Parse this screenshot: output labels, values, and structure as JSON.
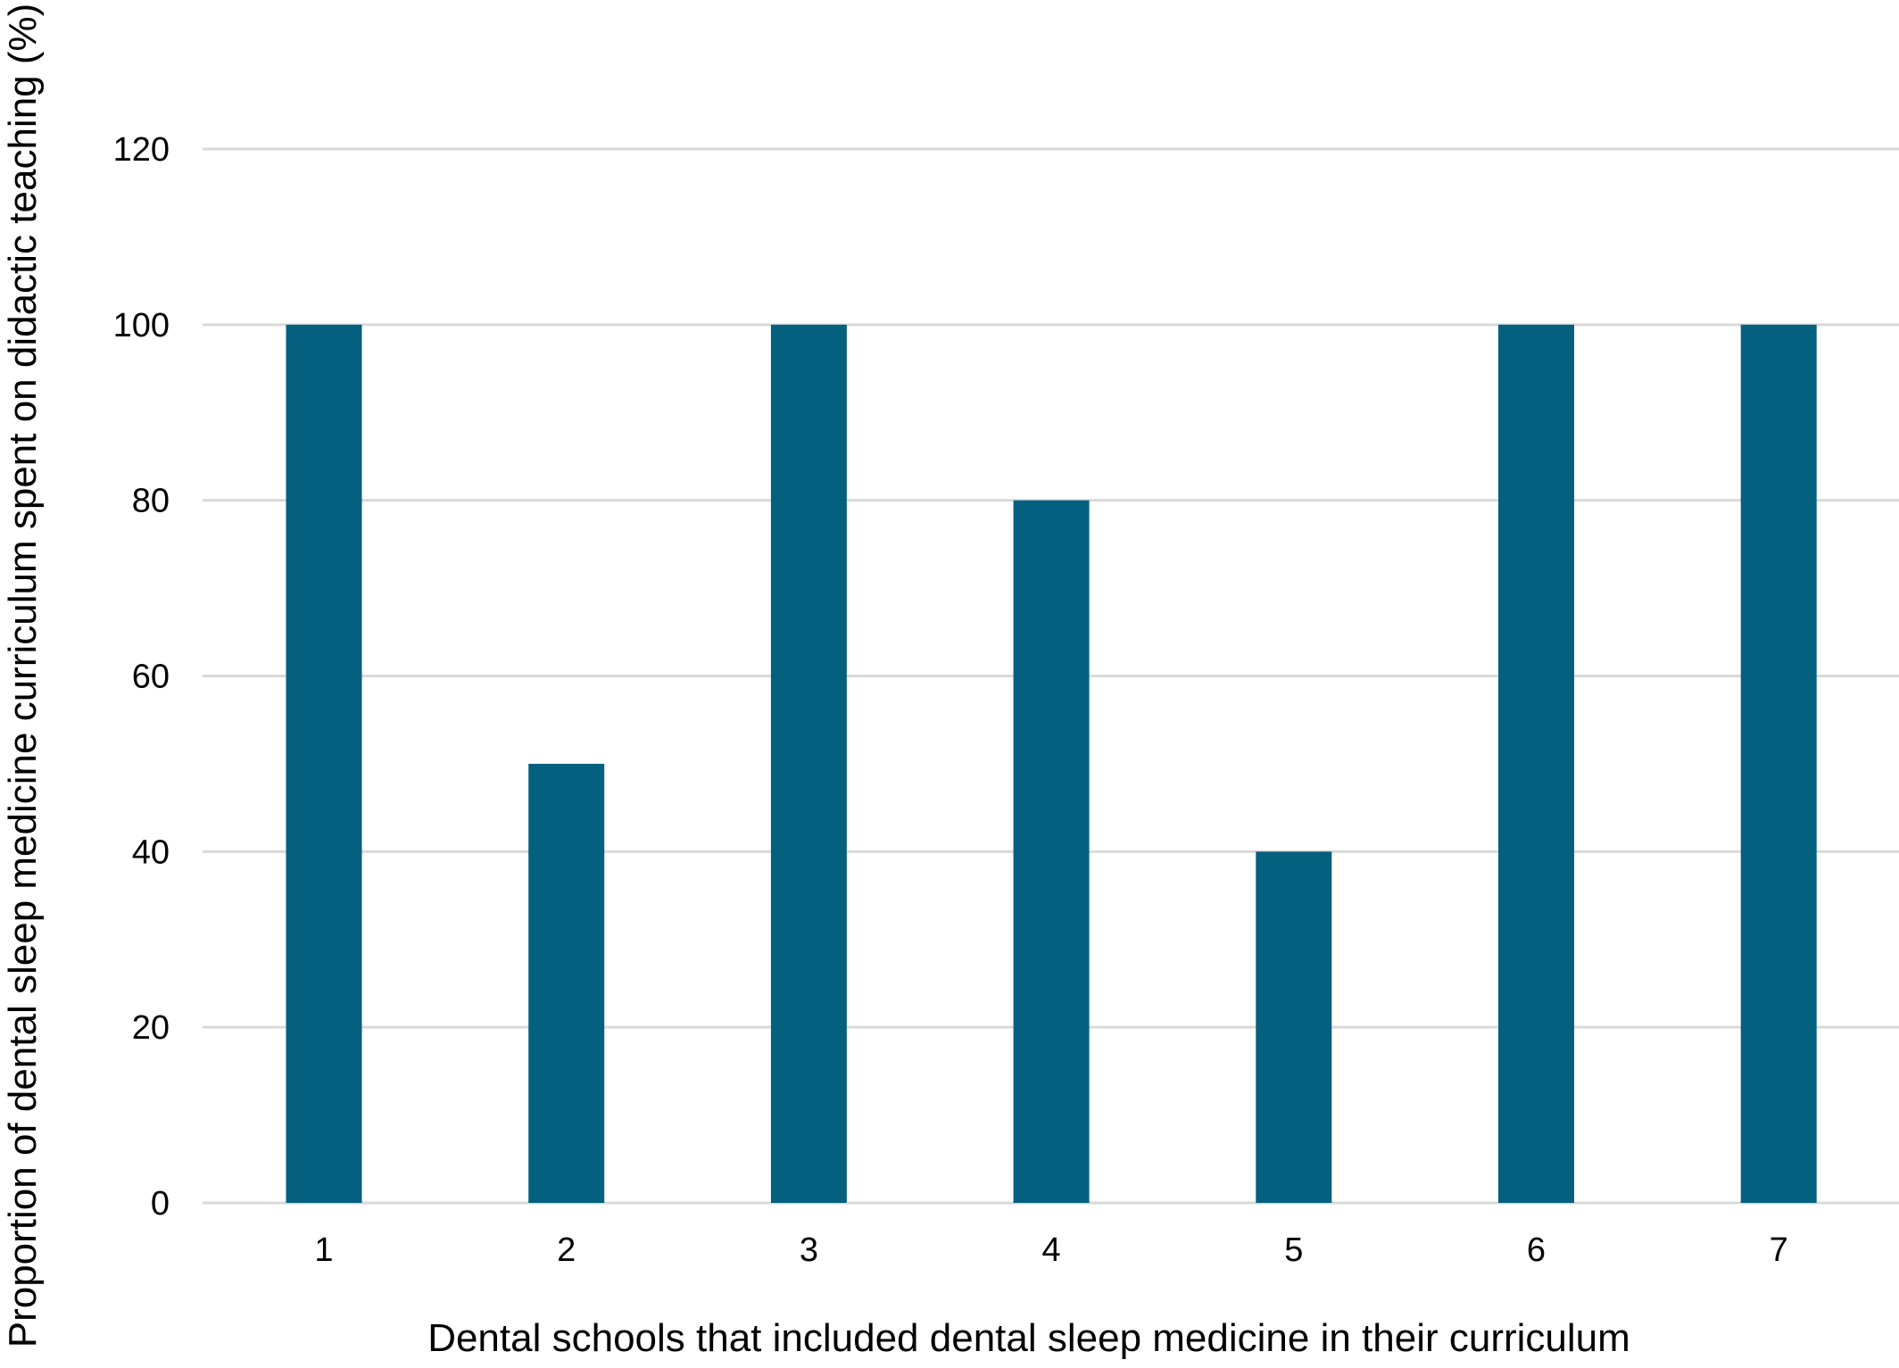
{
  "chart_data": {
    "type": "bar",
    "title": "",
    "xlabel": "Dental schools that included dental sleep medicine in their curriculum",
    "ylabel": "Proportion of dental sleep medicine curriculum spent on didactic teaching (%)",
    "categories": [
      "1",
      "2",
      "3",
      "4",
      "5",
      "6",
      "7"
    ],
    "values": [
      100,
      50,
      100,
      80,
      40,
      100,
      100
    ],
    "ylim": [
      0,
      120
    ],
    "yticks": [
      0,
      20,
      40,
      60,
      80,
      100,
      120
    ],
    "grid": true,
    "legend": "none",
    "bar_color": "#05607f",
    "grid_color": "#d9d9d9"
  }
}
